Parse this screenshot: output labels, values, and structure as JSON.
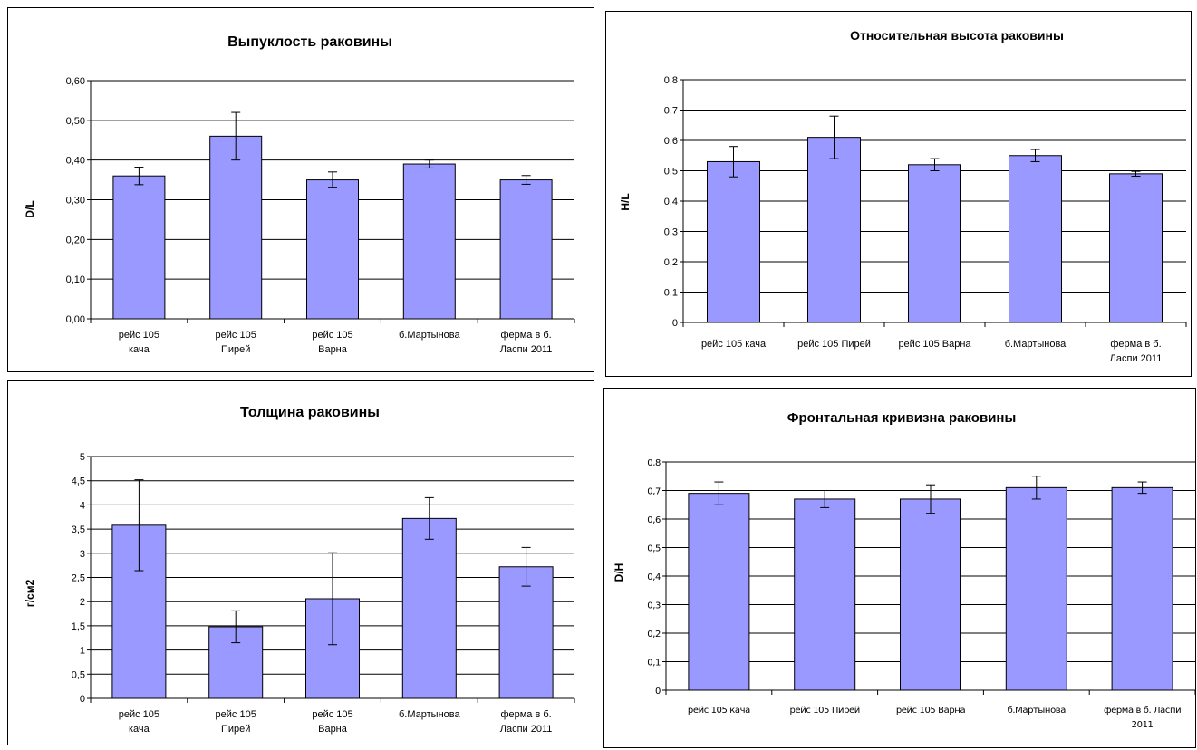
{
  "colors": {
    "bar_fill": "#9999ff",
    "bar_stroke": "#000000",
    "grid": "#000000"
  },
  "chart_data": [
    {
      "type": "bar",
      "title": "Выпуклость раковины",
      "ylabel": "D/L",
      "xlabel": "",
      "ylim": [
        0,
        0.6
      ],
      "yticks": [
        "0,00",
        "0,10",
        "0,20",
        "0,30",
        "0,40",
        "0,50",
        "0,60"
      ],
      "categories": [
        [
          "рейс 105",
          "кача"
        ],
        [
          "рейс 105",
          "Пирей"
        ],
        [
          "рейс 105",
          "Варна"
        ],
        [
          "б.Мартынова"
        ],
        [
          "ферма в б.",
          "Ласпи 2011"
        ]
      ],
      "values": [
        0.36,
        0.46,
        0.35,
        0.39,
        0.35
      ],
      "errors": [
        0.022,
        0.06,
        0.02,
        0.01,
        0.011
      ],
      "grid": true
    },
    {
      "type": "bar",
      "title": "Относительная высота раковины",
      "ylabel": "H/L",
      "xlabel": "",
      "ylim": [
        0,
        0.8
      ],
      "yticks": [
        "0",
        "0,1",
        "0,2",
        "0,3",
        "0,4",
        "0,5",
        "0,6",
        "0,7",
        "0,8"
      ],
      "categories": [
        [
          "рейс 105 кача"
        ],
        [
          "рейс 105 Пирей"
        ],
        [
          "рейс 105 Варна"
        ],
        [
          "б.Мартынова"
        ],
        [
          "ферма в б.",
          "Ласпи 2011"
        ]
      ],
      "values": [
        0.53,
        0.61,
        0.52,
        0.55,
        0.49
      ],
      "errors": [
        0.05,
        0.07,
        0.02,
        0.02,
        0.008
      ],
      "grid": true
    },
    {
      "type": "bar",
      "title": "Толщина раковины",
      "ylabel": "г/см2",
      "xlabel": "",
      "ylim": [
        0,
        5
      ],
      "yticks": [
        "0",
        "0,5",
        "1",
        "1,5",
        "2",
        "2,5",
        "3",
        "3,5",
        "4",
        "4,5",
        "5"
      ],
      "categories": [
        [
          "рейс 105",
          "кача"
        ],
        [
          "рейс 105",
          "Пирей"
        ],
        [
          "рейс 105",
          "Варна"
        ],
        [
          "б.Мартынова"
        ],
        [
          "ферма в б.",
          "Ласпи 2011"
        ]
      ],
      "values": [
        3.58,
        1.48,
        2.06,
        3.72,
        2.72
      ],
      "errors": [
        0.94,
        0.33,
        0.95,
        0.43,
        0.4
      ],
      "grid": true
    },
    {
      "type": "bar",
      "title": "Фронтальная кривизна раковины",
      "ylabel": "D/H",
      "xlabel": "",
      "ylim": [
        0,
        0.8
      ],
      "yticks": [
        "0",
        "0,1",
        "0,2",
        "0,3",
        "0,4",
        "0,5",
        "0,6",
        "0,7",
        "0,8"
      ],
      "categories": [
        [
          "рейс 105 кача"
        ],
        [
          "рейс 105 Пирей"
        ],
        [
          "рейс 105 Варна"
        ],
        [
          "б.Мартынова"
        ],
        [
          "ферма в б. Ласпи",
          "2011"
        ]
      ],
      "values": [
        0.69,
        0.67,
        0.67,
        0.71,
        0.71
      ],
      "errors": [
        0.04,
        0.03,
        0.05,
        0.04,
        0.02
      ],
      "grid": true
    }
  ]
}
